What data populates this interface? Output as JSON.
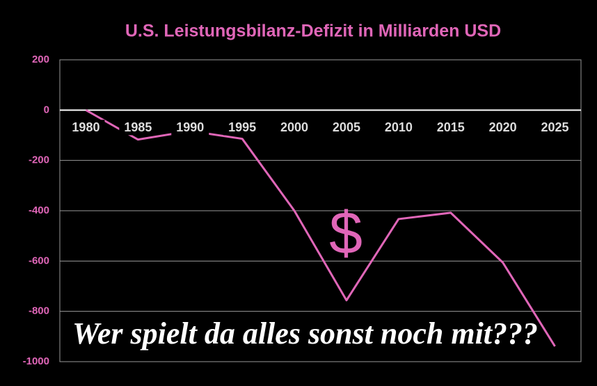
{
  "chart_data": {
    "type": "line",
    "title": "U.S. Leistungsbilanz-Defizit in Milliarden USD",
    "categories": [
      "1980",
      "1985",
      "1990",
      "1995",
      "2000",
      "2005",
      "2010",
      "2015",
      "2020",
      "2025"
    ],
    "values": [
      0,
      -117,
      -83,
      -114,
      -400,
      -756,
      -433,
      -408,
      -606,
      -939
    ],
    "color": "#e066b8",
    "ylim": [
      -1000,
      200
    ],
    "yticks": [
      -1000,
      -800,
      -600,
      -400,
      -200,
      0,
      200
    ],
    "grid": true,
    "annotations": [
      "$",
      "Wer spielt da alles sonst noch mit???"
    ]
  }
}
